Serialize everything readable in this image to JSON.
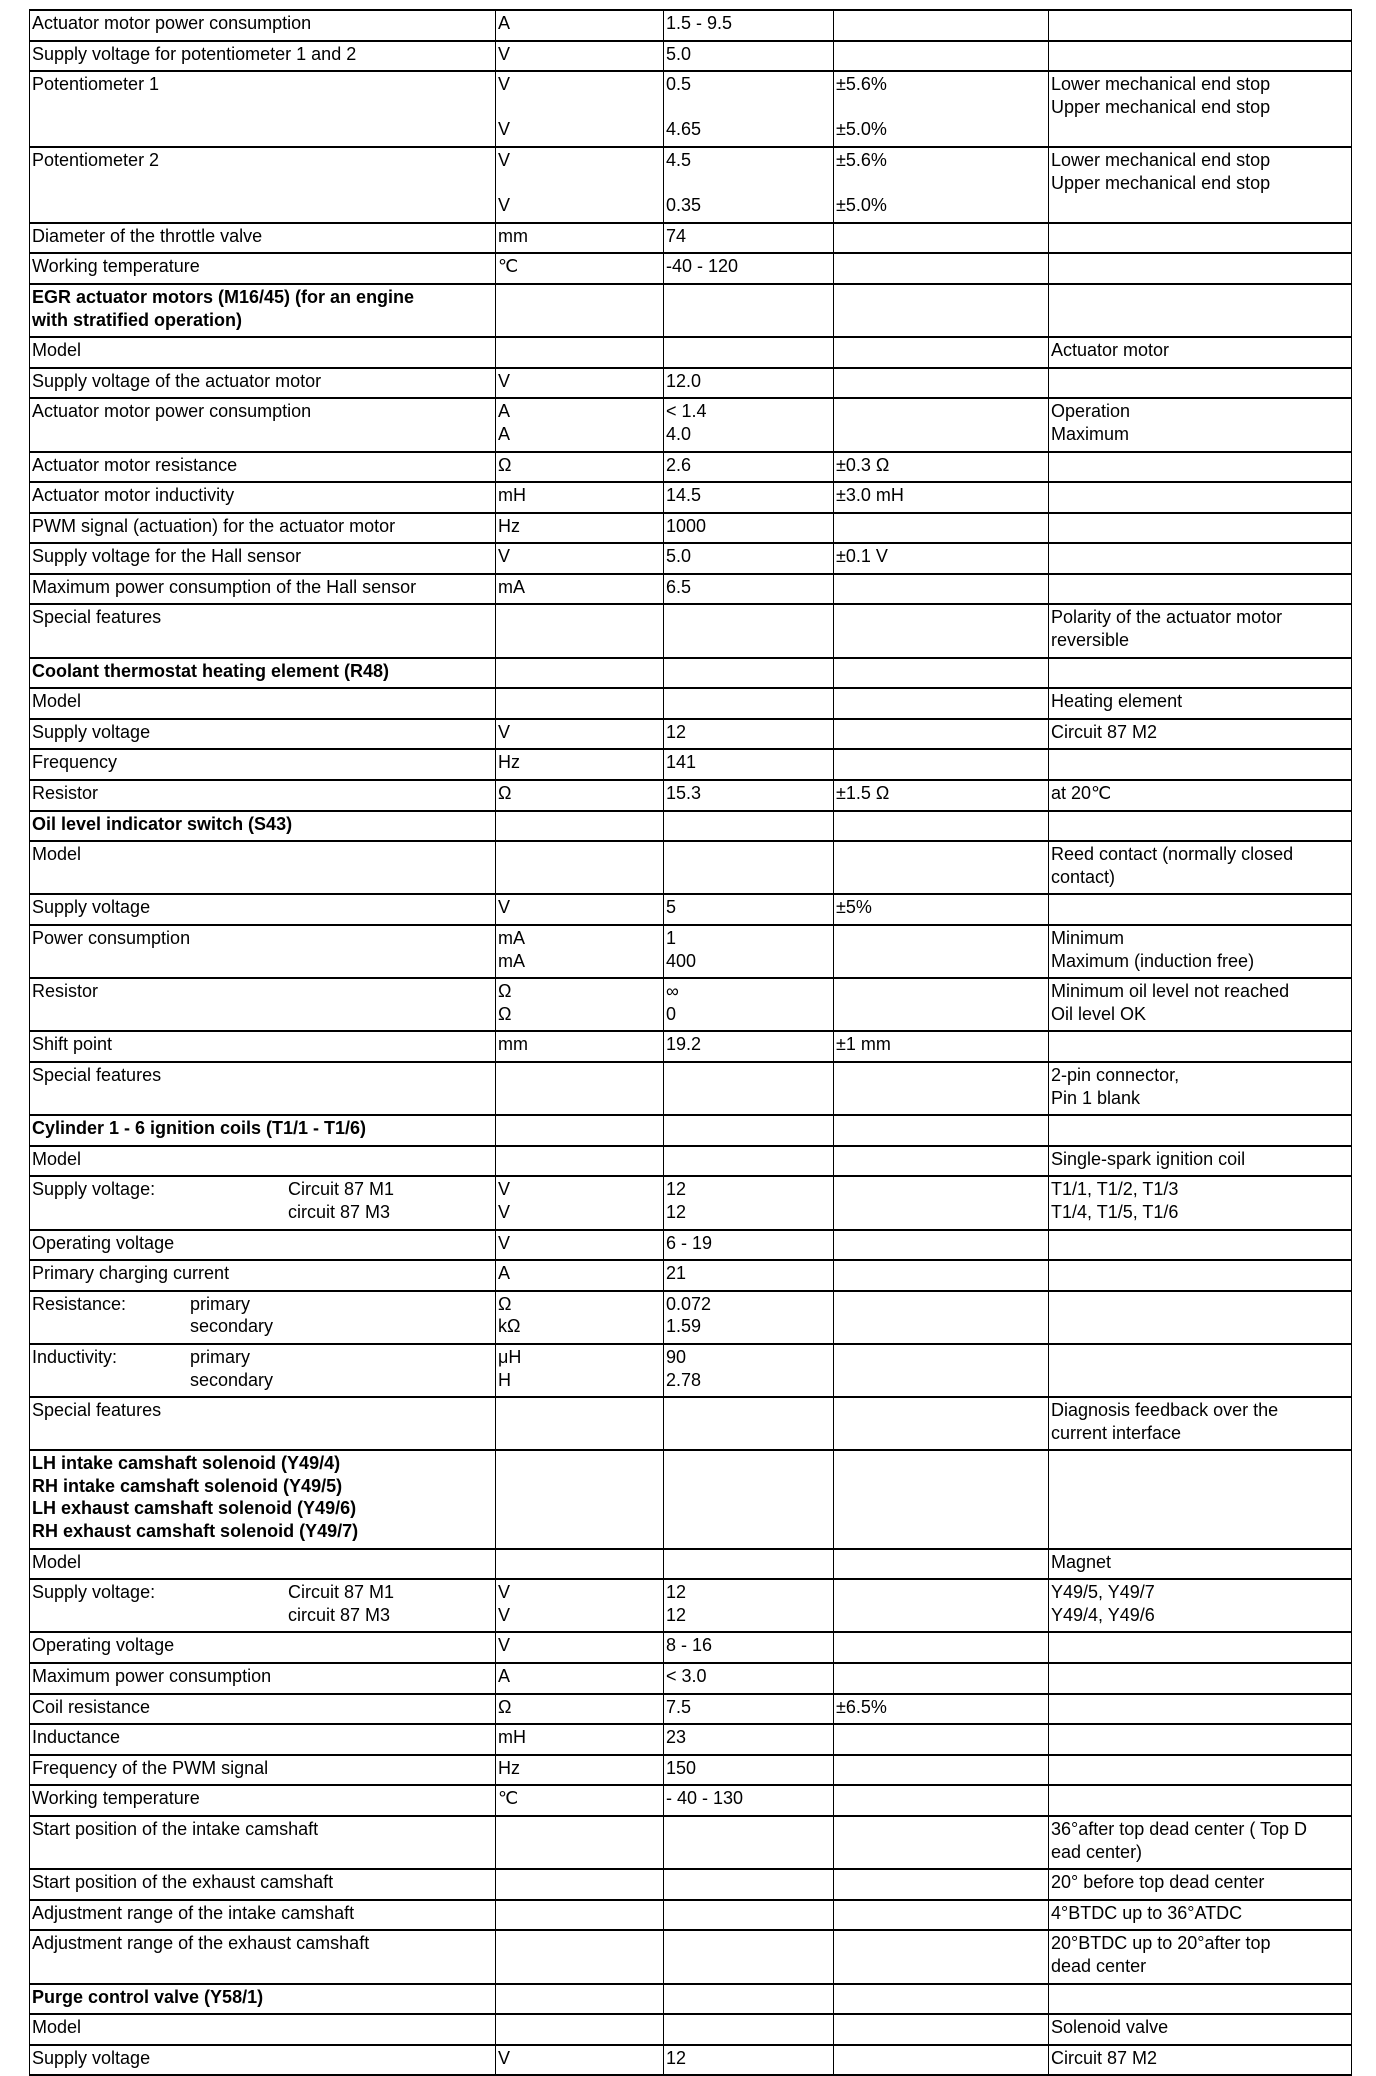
{
  "rows": [
    {
      "param": "Actuator motor power consumption",
      "unit": "A",
      "value": "1.5 - 9.5",
      "tol": "",
      "note": ""
    },
    {
      "param": "Supply voltage for potentiometer 1 and 2",
      "unit": "V",
      "value": "5.0",
      "tol": "",
      "note": ""
    },
    {
      "param": "Potentiometer 1",
      "unit": "V\n\nV",
      "value": "0.5\n\n4.65",
      "tol": "±5.6%\n\n±5.0%",
      "note": "Lower mechanical end stop\nUpper mechanical end stop"
    },
    {
      "param": "Potentiometer 2",
      "unit": "V\n\nV",
      "value": "4.5\n\n0.35",
      "tol": "±5.6%\n\n±5.0%",
      "note": "Lower mechanical end stop\nUpper mechanical end stop"
    },
    {
      "param": "Diameter of the throttle valve",
      "unit": "mm",
      "value": "74",
      "tol": "",
      "note": ""
    },
    {
      "param": "Working temperature",
      "unit": "℃",
      "value": "-40 - 120",
      "tol": "",
      "note": ""
    },
    {
      "param": "EGR actuator motors (M16/45) (for an engine\nwith stratified operation)",
      "bold": true,
      "unit": "",
      "value": "",
      "tol": "",
      "note": ""
    },
    {
      "param": "Model",
      "unit": "",
      "value": "",
      "tol": "",
      "note": "Actuator motor"
    },
    {
      "param": "Supply voltage of the actuator motor",
      "unit": "V",
      "value": "12.0",
      "tol": "",
      "note": ""
    },
    {
      "param": "Actuator motor power consumption",
      "unit": "A\nA",
      "value": "< 1.4\n    4.0",
      "tol": "",
      "note": "Operation\nMaximum"
    },
    {
      "param": "Actuator motor resistance",
      "unit": "Ω",
      "value": "2.6",
      "tol": "±0.3 Ω",
      "note": ""
    },
    {
      "param": "Actuator motor inductivity",
      "unit": "mH",
      "value": "14.5",
      "tol": "±3.0 mH",
      "note": ""
    },
    {
      "param": "PWM signal (actuation) for the actuator motor",
      "unit": "Hz",
      "value": "1000",
      "tol": "",
      "note": ""
    },
    {
      "param": "Supply voltage for the Hall sensor",
      "unit": "V",
      "value": "5.0",
      "tol": "±0.1 V",
      "note": ""
    },
    {
      "param": "Maximum power consumption of the Hall sensor",
      "unit": "mA",
      "value": "6.5",
      "tol": "",
      "note": ""
    },
    {
      "param": "Special features",
      "unit": "",
      "value": "",
      "tol": "",
      "note": "Polarity of the actuator motor\nreversible"
    },
    {
      "param": "Coolant thermostat heating element (R48)",
      "bold": true,
      "unit": "",
      "value": "",
      "tol": "",
      "note": ""
    },
    {
      "param": "Model",
      "unit": "",
      "value": "",
      "tol": "",
      "note": "Heating element"
    },
    {
      "param": "Supply voltage",
      "unit": "V",
      "value": "12",
      "tol": "",
      "note": "Circuit 87 M2"
    },
    {
      "param": "Frequency",
      "unit": "Hz",
      "value": "141",
      "tol": "",
      "note": ""
    },
    {
      "param": "Resistor",
      "unit": "Ω",
      "value": "15.3",
      "tol": "±1.5 Ω",
      "note": "at 20℃"
    },
    {
      "param": "Oil level indicator switch (S43)",
      "bold": true,
      "unit": "",
      "value": "",
      "tol": "",
      "note": ""
    },
    {
      "param": "Model",
      "unit": "",
      "value": "",
      "tol": "",
      "note": "Reed contact (normally closed\ncontact)"
    },
    {
      "param": "Supply voltage",
      "unit": "V",
      "value": "5",
      "tol": "±5%",
      "note": ""
    },
    {
      "param": "Power consumption",
      "unit": "mA\nmA",
      "value": "1\n400",
      "tol": "",
      "note": "Minimum\nMaximum (induction free)"
    },
    {
      "param": "Resistor",
      "unit": "Ω\nΩ",
      "value": "∞\n0",
      "tol": "",
      "note": "Minimum oil level not reached\nOil level OK"
    },
    {
      "param": "Shift point",
      "unit": "mm",
      "value": "19.2",
      "tol": "±1 mm",
      "note": ""
    },
    {
      "param": "Special features",
      "unit": "",
      "value": "",
      "tol": "",
      "note": "2-pin connector,\nPin 1 blank"
    },
    {
      "param": "Cylinder 1 - 6 ignition coils (T1/1  - T1/6)",
      "bold": true,
      "unit": "",
      "value": "",
      "tol": "",
      "note": ""
    },
    {
      "param": "Model",
      "unit": "",
      "value": "",
      "tol": "",
      "note": "Single-spark ignition coil"
    },
    {
      "param": "Supply voltage:",
      "sub": "Circuit 87 M1\ncircuit 87 M3",
      "subwide": true,
      "unit": "V\nV",
      "value": "12\n12",
      "tol": "",
      "note": "T1/1, T1/2, T1/3\nT1/4, T1/5, T1/6"
    },
    {
      "param": "Operating voltage",
      "unit": "V",
      "value": "6 - 19",
      "tol": "",
      "note": ""
    },
    {
      "param": "Primary charging current",
      "unit": "A",
      "value": "21",
      "tol": "",
      "note": ""
    },
    {
      "param": "Resistance:",
      "sub": "primary\nsecondary",
      "unit": "Ω\nkΩ",
      "value": "0.072\n1.59",
      "tol": "",
      "note": ""
    },
    {
      "param": "Inductivity:",
      "sub": "primary\nsecondary",
      "unit": "μH\nH",
      "value": "90\n2.78",
      "tol": "",
      "note": ""
    },
    {
      "param": "Special features",
      "unit": "",
      "value": "",
      "tol": "",
      "note": "Diagnosis feedback over the\ncurrent interface"
    },
    {
      "param": "LH intake camshaft solenoid (Y49/4)\nRH intake camshaft solenoid (Y49/5)\nLH exhaust camshaft solenoid (Y49/6)\nRH exhaust camshaft solenoid (Y49/7)",
      "bold": true,
      "unit": "",
      "value": "",
      "tol": "",
      "note": ""
    },
    {
      "param": "Model",
      "unit": "",
      "value": "",
      "tol": "",
      "note": "Magnet"
    },
    {
      "param": "Supply voltage:",
      "sub": "Circuit 87 M1\ncircuit 87 M3",
      "subwide": true,
      "unit": "V\nV",
      "value": "12\n12",
      "tol": "",
      "note": "Y49/5, Y49/7\nY49/4, Y49/6"
    },
    {
      "param": "Operating voltage",
      "unit": "V",
      "value": "8 - 16",
      "tol": "",
      "note": ""
    },
    {
      "param": "Maximum power consumption",
      "unit": "A",
      "value": "< 3.0",
      "tol": "",
      "note": ""
    },
    {
      "param": "Coil resistance",
      "unit": "Ω",
      "value": "7.5",
      "tol": "±6.5%",
      "note": ""
    },
    {
      "param": "Inductance",
      "unit": "mH",
      "value": "23",
      "tol": "",
      "note": ""
    },
    {
      "param": "Frequency of the PWM signal",
      "unit": "Hz",
      "value": "150",
      "tol": "",
      "note": ""
    },
    {
      "param": "Working temperature",
      "unit": "℃",
      "value": "- 40 - 130",
      "tol": "",
      "note": ""
    },
    {
      "param": "Start position of the intake camshaft",
      "unit": "",
      "value": "",
      "tol": "",
      "note": "36°after top dead center (  Top D\nead center)"
    },
    {
      "param": "Start position of the exhaust camshaft",
      "unit": "",
      "value": "",
      "tol": "",
      "note": "20° before top dead center"
    },
    {
      "param": "Adjustment range of the intake camshaft",
      "unit": "",
      "value": "",
      "tol": "",
      "note": "4°BTDC up to 36°ATDC"
    },
    {
      "param": "Adjustment range of the exhaust camshaft",
      "unit": "",
      "value": "",
      "tol": "",
      "note": "20°BTDC up to 20°after top\ndead center"
    },
    {
      "param": "Purge control valve (Y58/1)",
      "bold": true,
      "unit": "",
      "value": "",
      "tol": "",
      "note": ""
    },
    {
      "param": "Model",
      "unit": "",
      "value": "",
      "tol": "",
      "note": "Solenoid valve"
    },
    {
      "param": "Supply voltage",
      "unit": "V",
      "value": "12",
      "tol": "",
      "note": "Circuit 87 M2"
    }
  ]
}
